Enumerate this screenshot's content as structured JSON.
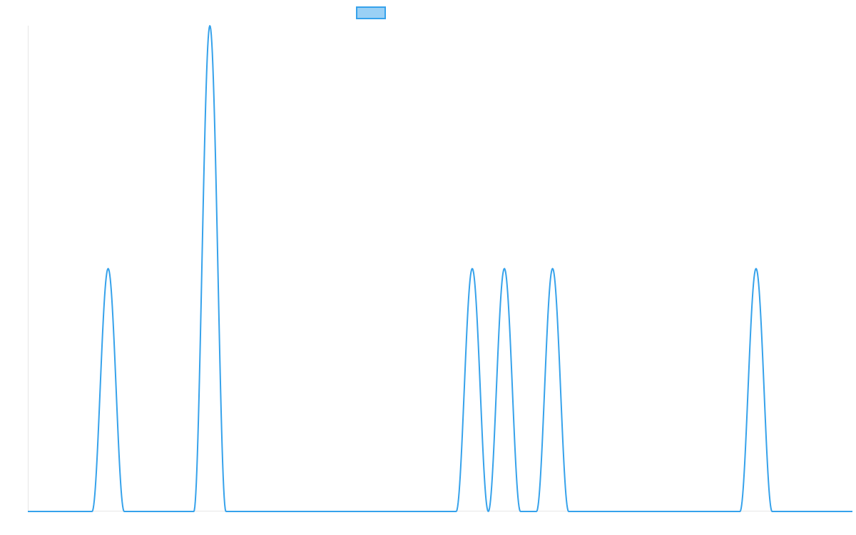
{
  "chart_data": {
    "type": "line",
    "title": "",
    "xlabel": "",
    "ylabel": "",
    "ylim": [
      0,
      2
    ],
    "grid": false,
    "legend": {
      "position": "top-center",
      "show_label": false
    },
    "series": [
      {
        "label": "",
        "color": "#36a2eb",
        "fill": "#9ad0f5",
        "points": [
          {
            "x": 61,
            "y": 1
          },
          {
            "x": 80,
            "y": 2
          },
          {
            "x": 129,
            "y": 1
          },
          {
            "x": 135,
            "y": 1
          },
          {
            "x": 144,
            "y": 1
          },
          {
            "x": 182,
            "y": 1
          }
        ]
      }
    ],
    "xlim": [
      46,
      200
    ],
    "peak_half_width": 3
  }
}
